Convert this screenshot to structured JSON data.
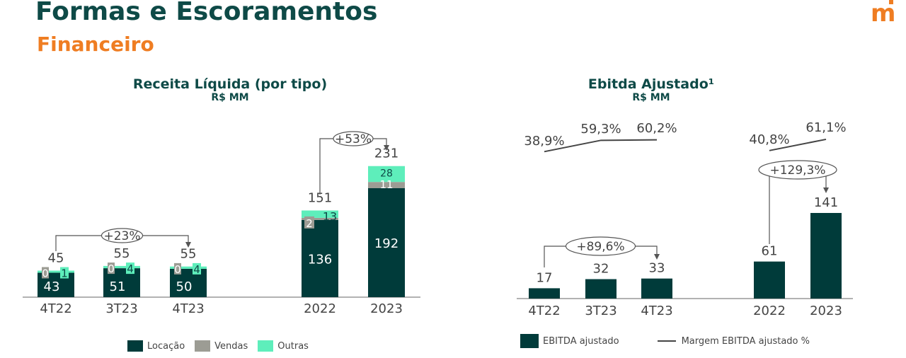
{
  "header": {
    "title": "Formas e Escoramentos",
    "subtitle": "Financeiro",
    "logo_text": "m"
  },
  "colors": {
    "locacao": "#003b3a",
    "vendas": "#9c9c94",
    "outras": "#5eeebb",
    "ebitda": "#003b3a",
    "text": "#444444",
    "title_teal": "#0e4a47",
    "accent_orange": "#ef7d22"
  },
  "chart_data": [
    {
      "type": "bar",
      "stacked": true,
      "title": "Receita Líquida (por tipo)",
      "subtitle": "R$ MM",
      "categories": [
        "4T22",
        "3T23",
        "4T23",
        "2022",
        "2023"
      ],
      "series": [
        {
          "name": "Locação",
          "values": [
            43,
            51,
            50,
            136,
            192
          ]
        },
        {
          "name": "Vendas",
          "values": [
            0,
            0,
            0,
            2,
            11
          ]
        },
        {
          "name": "Outras",
          "values": [
            1,
            4,
            4,
            13,
            28
          ]
        }
      ],
      "totals": [
        "45",
        "55",
        "55",
        "151",
        "231"
      ],
      "annotations": [
        {
          "text": "+23%",
          "from": "4T22",
          "to": "4T23"
        },
        {
          "text": "+53%",
          "from": "2022",
          "to": "2023"
        }
      ],
      "legend": [
        "Locação",
        "Vendas",
        "Outras"
      ],
      "legend_position": "bottom"
    },
    {
      "type": "bar",
      "title": "Ebitda Ajustado¹",
      "subtitle": "R$ MM",
      "categories": [
        "4T22",
        "3T23",
        "4T23",
        "2022",
        "2023"
      ],
      "series": [
        {
          "name": "EBITDA ajustado",
          "values": [
            17,
            32,
            33,
            61,
            141
          ]
        }
      ],
      "line_series": {
        "name": "Margem EBITDA ajustado %",
        "values": [
          38.9,
          59.3,
          60.2,
          40.8,
          61.1
        ],
        "labels": [
          "38,9%",
          "59,3%",
          "60,2%",
          "40,8%",
          "61,1%"
        ]
      },
      "annotations": [
        {
          "text": "+89,6%",
          "from": "4T22",
          "to": "4T23"
        },
        {
          "text": "+129,3%",
          "from": "2022",
          "to": "2023"
        }
      ],
      "legend": [
        "EBITDA ajustado",
        "Margem EBITDA ajustado %"
      ],
      "legend_position": "bottom"
    }
  ]
}
